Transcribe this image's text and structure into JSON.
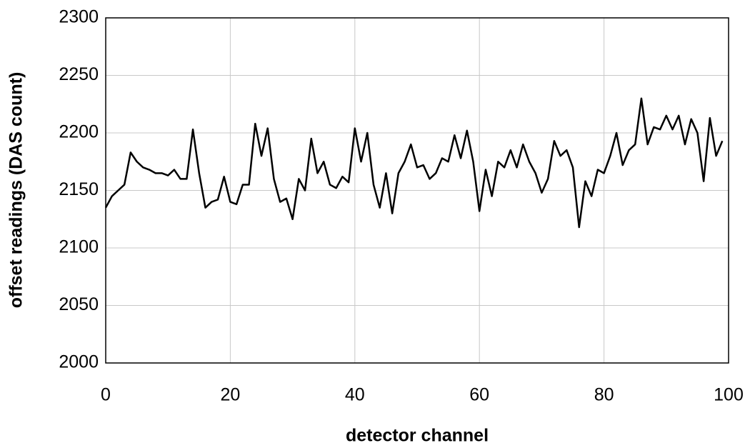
{
  "chart_data": {
    "type": "line",
    "xlabel": "detector channel",
    "ylabel": "offset readings (DAS count)",
    "x": [
      0,
      1,
      2,
      3,
      4,
      5,
      6,
      7,
      8,
      9,
      10,
      11,
      12,
      13,
      14,
      15,
      16,
      17,
      18,
      19,
      20,
      21,
      22,
      23,
      24,
      25,
      26,
      27,
      28,
      29,
      30,
      31,
      32,
      33,
      34,
      35,
      36,
      37,
      38,
      39,
      40,
      41,
      42,
      43,
      44,
      45,
      46,
      47,
      48,
      49,
      50,
      51,
      52,
      53,
      54,
      55,
      56,
      57,
      58,
      59,
      60,
      61,
      62,
      63,
      64,
      65,
      66,
      67,
      68,
      69,
      70,
      71,
      72,
      73,
      74,
      75,
      76,
      77,
      78,
      79,
      80,
      81,
      82,
      83,
      84,
      85,
      86,
      87,
      88,
      89,
      90,
      91,
      92,
      93,
      94,
      95,
      96,
      97,
      98,
      99
    ],
    "series": [
      {
        "name": "offset",
        "color": "#000000",
        "values": [
          2135,
          2145,
          2150,
          2155,
          2183,
          2175,
          2170,
          2168,
          2165,
          2165,
          2163,
          2168,
          2160,
          2160,
          2203,
          2165,
          2135,
          2140,
          2142,
          2162,
          2140,
          2138,
          2155,
          2155,
          2208,
          2180,
          2204,
          2160,
          2140,
          2143,
          2125,
          2160,
          2150,
          2195,
          2165,
          2175,
          2155,
          2152,
          2162,
          2157,
          2204,
          2175,
          2200,
          2155,
          2135,
          2165,
          2130,
          2165,
          2175,
          2190,
          2170,
          2172,
          2160,
          2165,
          2178,
          2175,
          2198,
          2178,
          2202,
          2175,
          2132,
          2168,
          2145,
          2175,
          2170,
          2185,
          2170,
          2190,
          2175,
          2165,
          2148,
          2160,
          2193,
          2180,
          2185,
          2170,
          2118,
          2158,
          2145,
          2168,
          2165,
          2180,
          2200,
          2172,
          2185,
          2190,
          2230,
          2190,
          2205,
          2203,
          2215,
          2203,
          2215,
          2190,
          2212,
          2200,
          2158,
          2213,
          2180,
          2193
        ]
      }
    ],
    "xlim": [
      0,
      100
    ],
    "xticks": [
      0,
      20,
      40,
      60,
      80,
      100
    ],
    "ylim": [
      2000,
      2300
    ],
    "yticks": [
      2000,
      2050,
      2100,
      2150,
      2200,
      2250,
      2300
    ],
    "grid": true
  }
}
